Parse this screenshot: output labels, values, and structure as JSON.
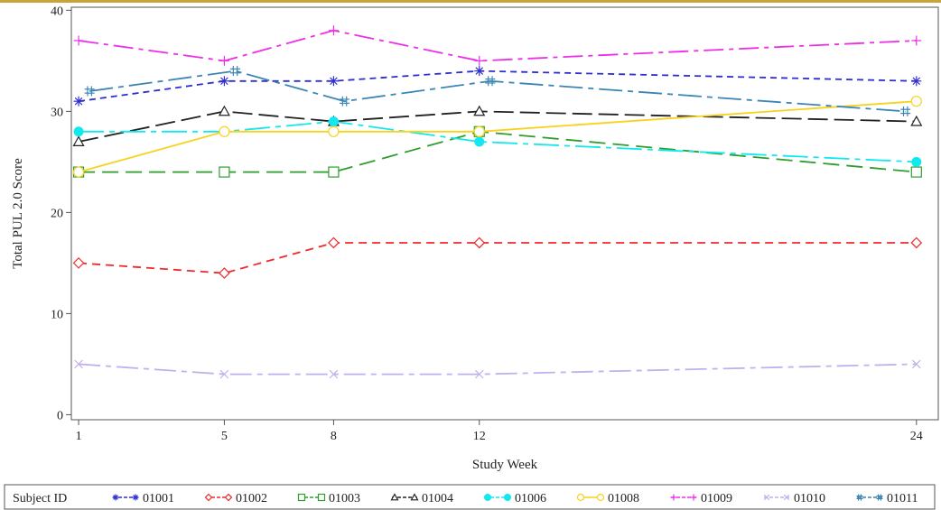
{
  "chart_data": {
    "type": "line",
    "title": "",
    "xlabel": "Study Week",
    "ylabel": "Total PUL 2.0 Score",
    "x": [
      1,
      5,
      8,
      12,
      24
    ],
    "xticks": [
      "1",
      "5",
      "8",
      "12",
      "24"
    ],
    "yticks": [
      "0",
      "10",
      "20",
      "30",
      "40"
    ],
    "xlim": [
      0.8,
      24.6
    ],
    "ylim": [
      -0.5,
      40.3
    ],
    "grid": false,
    "legend_title": "Subject ID",
    "legend_position": "bottom",
    "series": [
      {
        "name": "01001",
        "color": "#2f2fd0",
        "marker": "asterisk",
        "dash": "7,5",
        "points": [
          [
            1,
            31
          ],
          [
            5,
            33
          ],
          [
            8,
            33
          ],
          [
            12,
            34
          ],
          [
            24,
            33
          ]
        ]
      },
      {
        "name": "01002",
        "color": "#f02a2a",
        "marker": "diamond",
        "dash": "9,6",
        "points": [
          [
            1,
            15
          ],
          [
            5,
            14
          ],
          [
            8,
            17
          ],
          [
            12,
            17
          ],
          [
            24,
            17
          ]
        ]
      },
      {
        "name": "01003",
        "color": "#2e9e2e",
        "marker": "square",
        "dash": "18,8",
        "points": [
          [
            1,
            24
          ],
          [
            5,
            24
          ],
          [
            8,
            24
          ],
          [
            12,
            28
          ],
          [
            24,
            24
          ]
        ]
      },
      {
        "name": "01004",
        "color": "#222222",
        "marker": "triangle",
        "dash": "22,7",
        "points": [
          [
            1,
            27
          ],
          [
            5,
            30
          ],
          [
            8,
            29
          ],
          [
            12,
            30
          ],
          [
            24,
            29
          ]
        ]
      },
      {
        "name": "01006",
        "color": "#12e8ee",
        "marker": "circle",
        "dash": "28,6,6,6",
        "points": [
          [
            1,
            28
          ],
          [
            5,
            28
          ],
          [
            8,
            29
          ],
          [
            12,
            27
          ],
          [
            24,
            25
          ]
        ]
      },
      {
        "name": "01008",
        "color": "#f8d21c",
        "marker": "open-circle",
        "dash": "",
        "points": [
          [
            1,
            24
          ],
          [
            5,
            28
          ],
          [
            8,
            28
          ],
          [
            12,
            28
          ],
          [
            24,
            31
          ]
        ]
      },
      {
        "name": "01009",
        "color": "#ee2ee8",
        "marker": "plus",
        "dash": "22,6,5,6",
        "points": [
          [
            1,
            37
          ],
          [
            5,
            35
          ],
          [
            8,
            38
          ],
          [
            12,
            35
          ],
          [
            24,
            37
          ]
        ]
      },
      {
        "name": "01010",
        "color": "#c2b0ec",
        "marker": "x",
        "dash": "24,6,6,6",
        "points": [
          [
            1,
            5
          ],
          [
            5,
            4
          ],
          [
            8,
            4
          ],
          [
            12,
            4
          ],
          [
            24,
            5
          ]
        ]
      },
      {
        "name": "01011",
        "color": "#3c86b6",
        "marker": "hash",
        "dash": "26,6,6,6",
        "points": [
          [
            1.3,
            32
          ],
          [
            5.3,
            34
          ],
          [
            8.3,
            31
          ],
          [
            12.3,
            33
          ],
          [
            23.7,
            30
          ]
        ]
      }
    ]
  }
}
